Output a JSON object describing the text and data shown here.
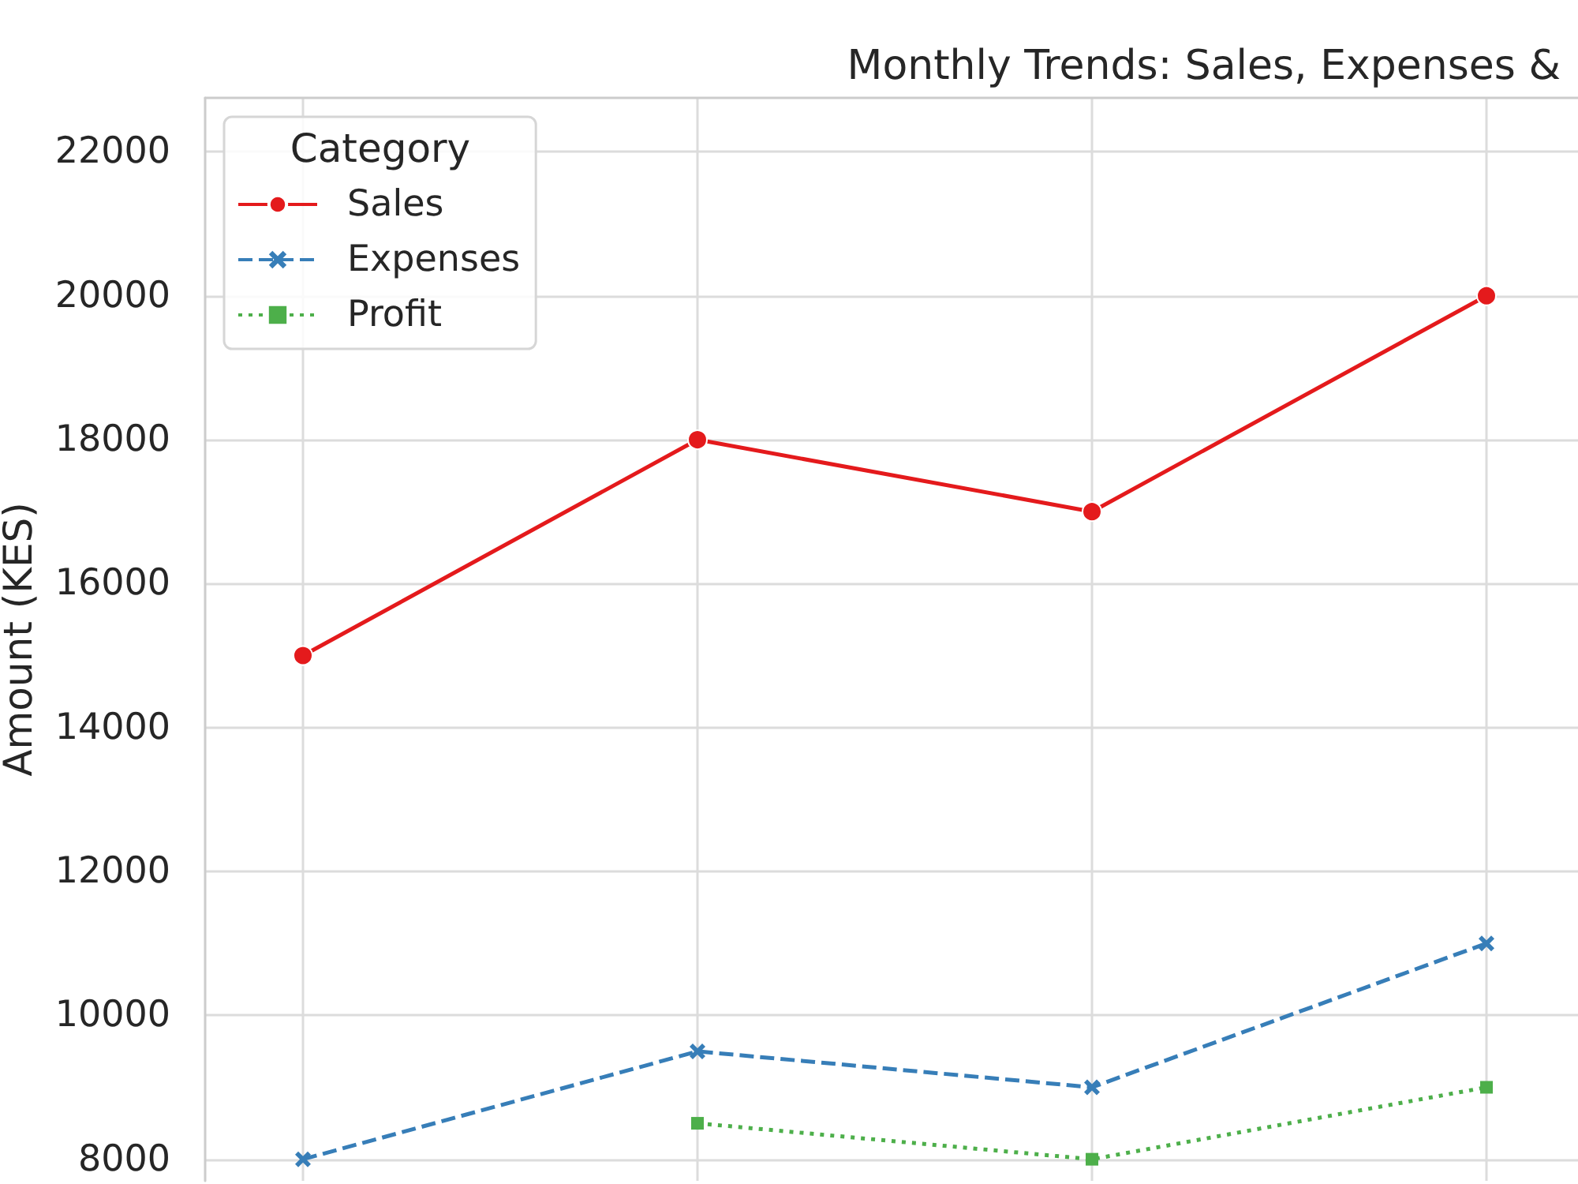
{
  "chart_data": {
    "type": "line",
    "title": "Monthly Trends: Sales, Expenses &",
    "ylabel": "Amount (KES)",
    "legend_title": "Category",
    "categories": [
      null,
      null,
      null,
      null
    ],
    "series": [
      {
        "name": "Sales",
        "color": "#e41a1c",
        "values": [
          15000,
          18000,
          17000,
          20000
        ],
        "marker": "circle",
        "line_style": "solid"
      },
      {
        "name": "Expenses",
        "color": "#377eb8",
        "values": [
          8000,
          9500,
          9000,
          11000
        ],
        "marker": "cross",
        "line_style": "dashed"
      },
      {
        "name": "Profit",
        "color": "#4daf4a",
        "values": [
          null,
          8500,
          8000,
          9000
        ],
        "marker": "square",
        "line_style": "dotted"
      }
    ],
    "ylim": [
      7700,
      22750
    ],
    "yticks": [
      8000,
      10000,
      12000,
      14000,
      16000,
      18000,
      20000,
      22000
    ],
    "grid": true,
    "legend": "top left",
    "tick_labels": "y"
  }
}
